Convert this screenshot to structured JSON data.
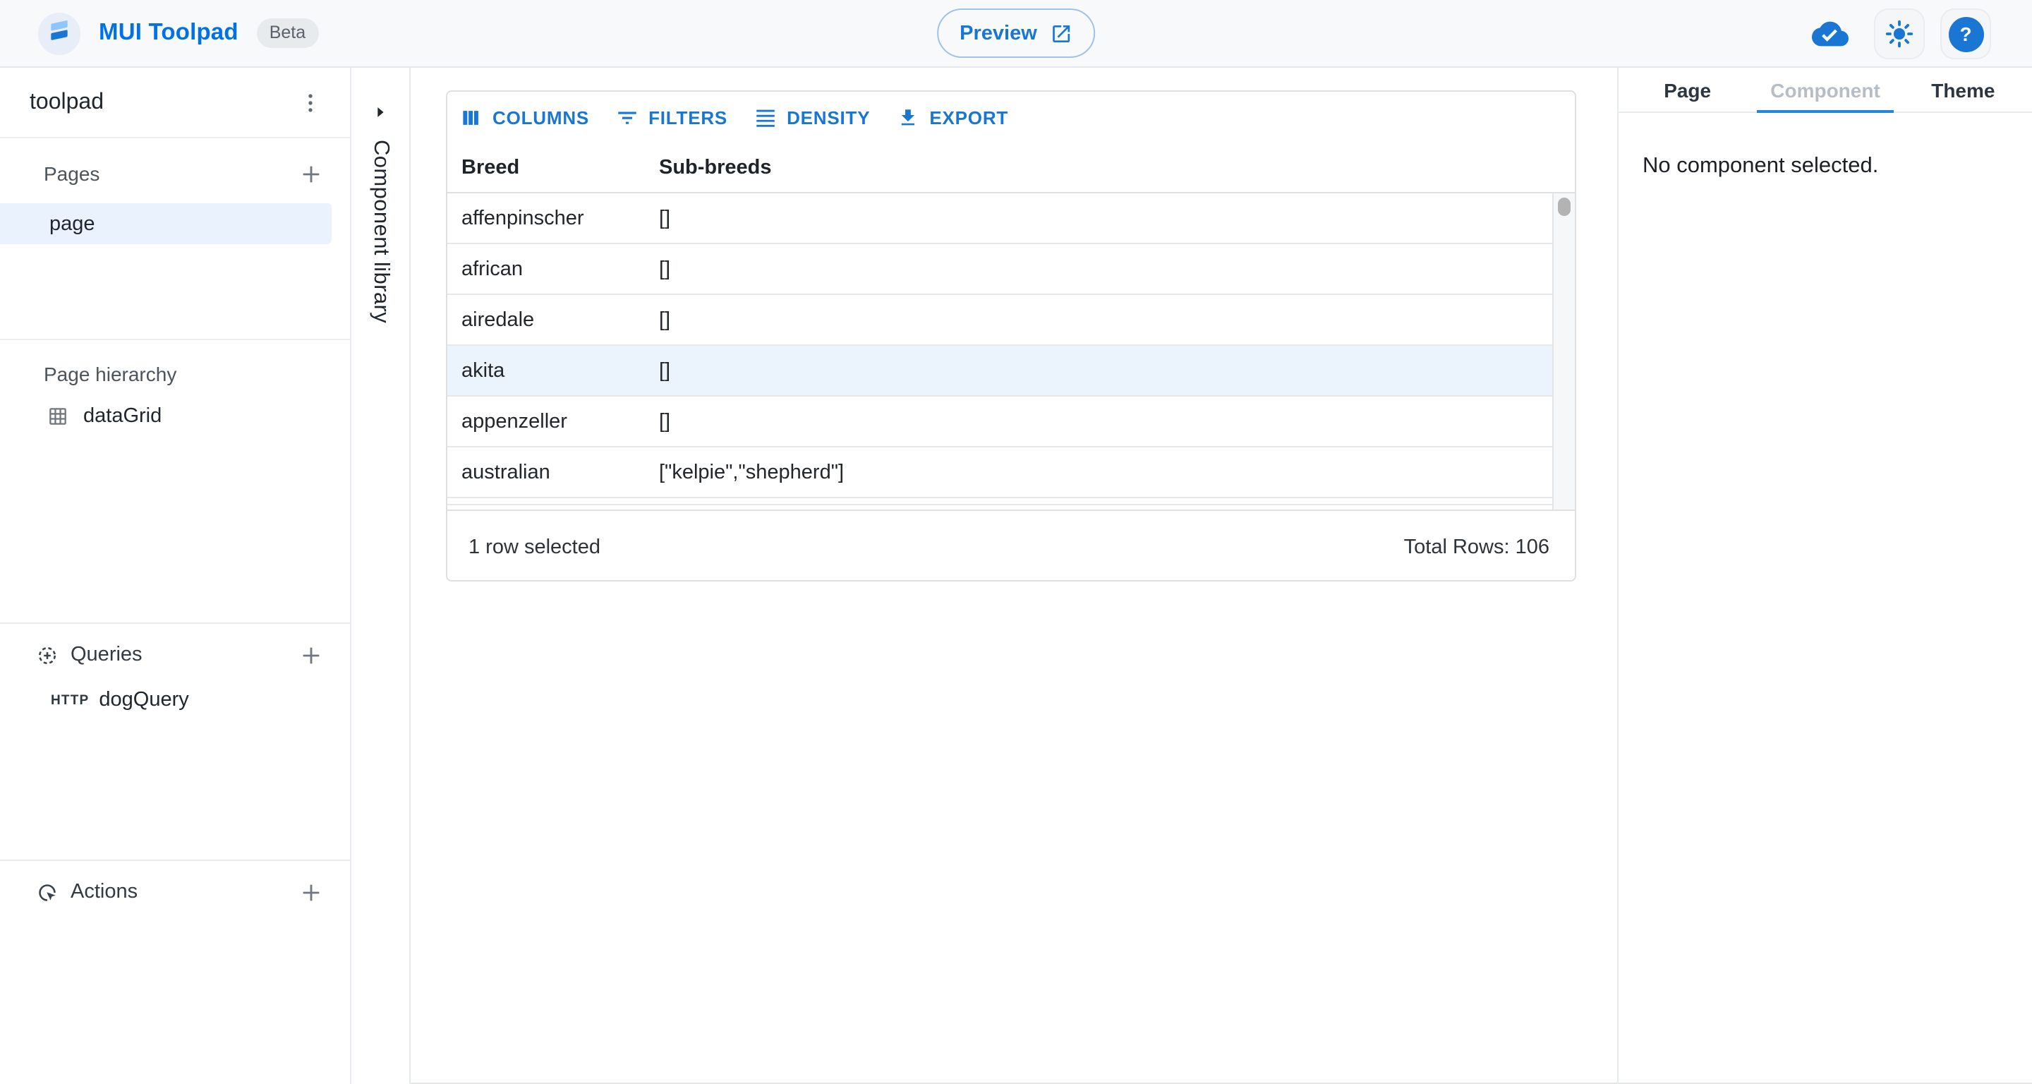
{
  "topbar": {
    "brand": "MUI Toolpad",
    "beta": "Beta",
    "preview": "Preview"
  },
  "sidebar": {
    "title": "toolpad",
    "pages_header": "Pages",
    "page_item": "page",
    "hierarchy_header": "Page hierarchy",
    "hierarchy_item": "dataGrid",
    "queries_header": "Queries",
    "query_badge": "HTTP",
    "query_item": "dogQuery",
    "actions_header": "Actions"
  },
  "component_library": {
    "label": "Component library"
  },
  "datagrid": {
    "toolbar": {
      "columns": "COLUMNS",
      "filters": "FILTERS",
      "density": "DENSITY",
      "export": "EXPORT"
    },
    "columns": [
      "Breed",
      "Sub-breeds"
    ],
    "rows": [
      {
        "breed": "affenpinscher",
        "sub_breeds": "[]",
        "selected": false
      },
      {
        "breed": "african",
        "sub_breeds": "[]",
        "selected": false
      },
      {
        "breed": "airedale",
        "sub_breeds": "[]",
        "selected": false
      },
      {
        "breed": "akita",
        "sub_breeds": "[]",
        "selected": true
      },
      {
        "breed": "appenzeller",
        "sub_breeds": "[]",
        "selected": false
      },
      {
        "breed": "australian",
        "sub_breeds": "[\"kelpie\",\"shepherd\"]",
        "selected": false
      }
    ],
    "footer": {
      "selected": "1 row selected",
      "total": "Total Rows: 106"
    }
  },
  "inspector": {
    "tabs": [
      {
        "label": "Page",
        "active": false,
        "disabled": false
      },
      {
        "label": "Component",
        "active": true,
        "disabled": true
      },
      {
        "label": "Theme",
        "active": false,
        "disabled": false
      }
    ],
    "message": "No component selected."
  },
  "colors": {
    "primary": "#1976d2",
    "brand_blue": "#0072e5",
    "row_selection": "#ebf3fd",
    "sidebar_selection": "#e9f2fd"
  }
}
